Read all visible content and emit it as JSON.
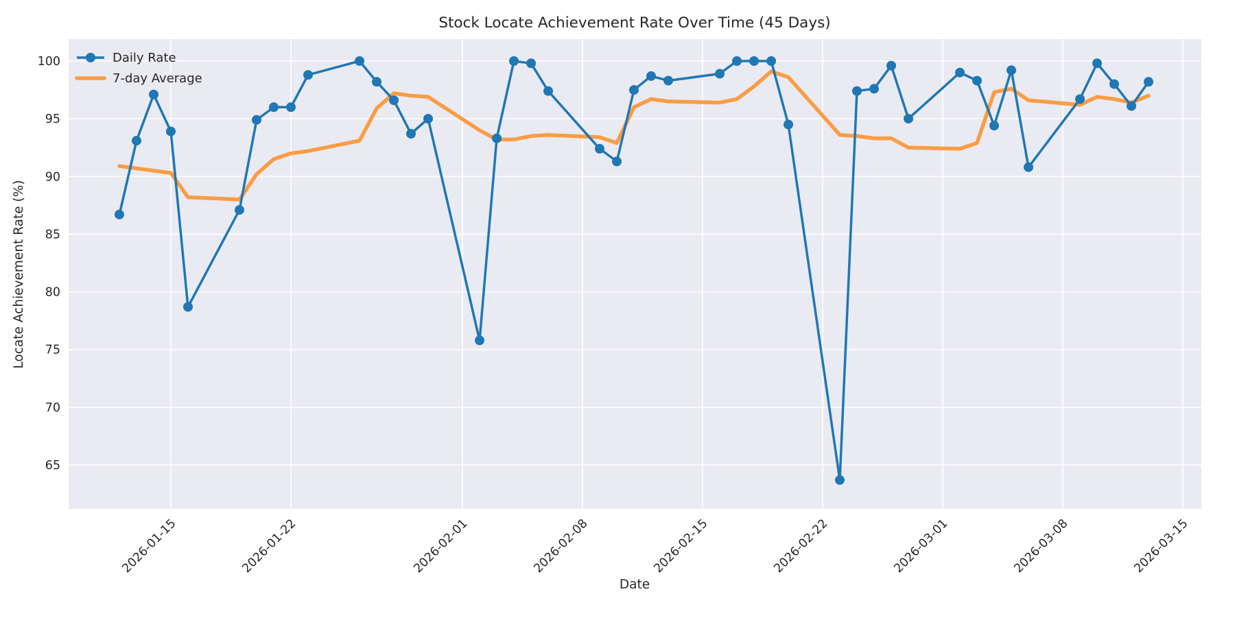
{
  "title": "Stock Locate Achievement Rate Over Time (45 Days)",
  "axes": {
    "xlabel": "Date",
    "ylabel": "Locate Achievement Rate (%)",
    "plot_background": "#eaeaf2",
    "grid_color": "#ffffff",
    "text_color": "#262626"
  },
  "legend": {
    "position": "upper-left",
    "frame": false,
    "entries": [
      {
        "label": "Daily Rate",
        "color": "#1f77b4",
        "marker": "circle-line"
      },
      {
        "label": "7-day Average",
        "color": "#f99d45",
        "marker": "line"
      }
    ]
  },
  "chart_data": {
    "type": "line",
    "title": "Stock Locate Achievement Rate Over Time (45 Days)",
    "xlabel": "Date",
    "ylabel": "Locate Achievement Rate (%)",
    "grid": true,
    "legend_position": "upper left",
    "x_dates": [
      "2026-01-12",
      "2026-01-13",
      "2026-01-14",
      "2026-01-15",
      "2026-01-16",
      "2026-01-19",
      "2026-01-20",
      "2026-01-21",
      "2026-01-22",
      "2026-01-23",
      "2026-01-26",
      "2026-01-27",
      "2026-01-28",
      "2026-01-29",
      "2026-01-30",
      "2026-02-02",
      "2026-02-03",
      "2026-02-04",
      "2026-02-05",
      "2026-02-06",
      "2026-02-09",
      "2026-02-10",
      "2026-02-11",
      "2026-02-12",
      "2026-02-13",
      "2026-02-16",
      "2026-02-17",
      "2026-02-18",
      "2026-02-19",
      "2026-02-20",
      "2026-02-23",
      "2026-02-24",
      "2026-02-25",
      "2026-02-26",
      "2026-02-27",
      "2026-03-02",
      "2026-03-03",
      "2026-03-04",
      "2026-03-05",
      "2026-03-06",
      "2026-03-09",
      "2026-03-10",
      "2026-03-11",
      "2026-03-12",
      "2026-03-13"
    ],
    "series": [
      {
        "name": "Daily Rate",
        "color": "#1f77b4",
        "line_width": 3.5,
        "marker": "circle",
        "marker_radius": 7,
        "values": [
          86.7,
          93.1,
          97.1,
          93.9,
          78.7,
          87.1,
          94.9,
          96.0,
          96.0,
          98.8,
          100.0,
          98.2,
          96.6,
          93.7,
          95.0,
          75.8,
          93.3,
          100.0,
          99.8,
          97.4,
          92.4,
          91.3,
          97.5,
          98.7,
          98.3,
          98.9,
          100.0,
          100.0,
          100.0,
          94.5,
          63.7,
          97.4,
          97.6,
          99.6,
          95.0,
          99.0,
          98.3,
          94.4,
          99.2,
          90.8,
          96.7,
          99.8,
          98.0,
          96.1,
          98.2
        ]
      },
      {
        "name": "7-day Average",
        "color": "#f99d45",
        "line_width": 5.5,
        "marker": "none",
        "values": [
          90.9,
          90.7,
          90.5,
          90.3,
          88.2,
          88.0,
          90.2,
          91.5,
          92.0,
          92.2,
          93.1,
          95.9,
          97.2,
          97.0,
          96.9,
          94.0,
          93.2,
          93.2,
          93.5,
          93.6,
          93.4,
          92.9,
          96.0,
          96.7,
          96.5,
          96.4,
          96.7,
          97.8,
          99.1,
          98.6,
          93.6,
          93.5,
          93.3,
          93.3,
          92.5,
          92.4,
          92.9,
          97.3,
          97.6,
          96.6,
          96.2,
          96.9,
          96.7,
          96.4,
          97.0
        ]
      }
    ],
    "x_ticks": [
      "2026-01-15",
      "2026-01-22",
      "2026-02-01",
      "2026-02-08",
      "2026-02-15",
      "2026-02-22",
      "2026-03-01",
      "2026-03-08",
      "2026-03-15"
    ],
    "y_ticks": [
      65,
      70,
      75,
      80,
      85,
      90,
      95,
      100
    ],
    "ylim": [
      61.2,
      101.9
    ],
    "xlim_days_from_first": [
      -2.96,
      63.08
    ]
  }
}
